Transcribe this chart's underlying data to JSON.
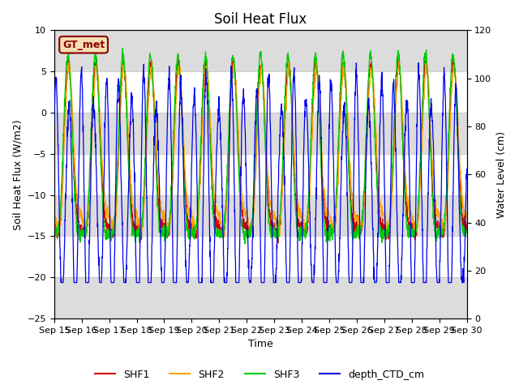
{
  "title": "Soil Heat Flux",
  "ylabel_left": "Soil Heat Flux (W/m2)",
  "ylabel_right": "Water Level (cm)",
  "xlabel": "Time",
  "ylim_left": [
    -25,
    10
  ],
  "ylim_right": [
    0,
    120
  ],
  "annotation_text": "GT_met",
  "annotation_color": "#8B0000",
  "annotation_bg": "#F5DEB3",
  "legend_labels": [
    "SHF1",
    "SHF2",
    "SHF3",
    "depth_CTD_cm"
  ],
  "line_colors": [
    "#CC0000",
    "#FFA500",
    "#00CC00",
    "#0000EE"
  ],
  "background_color": "#ffffff",
  "band_color": "#dcdcdc",
  "title_fontsize": 12,
  "label_fontsize": 9,
  "tick_fontsize": 8,
  "n_points": 2160,
  "x_start": 15,
  "x_end": 30,
  "x_ticks": [
    15,
    16,
    17,
    18,
    19,
    20,
    21,
    22,
    23,
    24,
    25,
    26,
    27,
    28,
    29,
    30
  ],
  "x_tick_labels": [
    "Sep 15",
    "Sep 16",
    "Sep 17",
    "Sep 18",
    "Sep 19",
    "Sep 20",
    "Sep 21",
    "Sep 22",
    "Sep 23",
    "Sep 24",
    "Sep 25",
    "Sep 26",
    "Sep 27",
    "Sep 28",
    "Sep 29",
    "Sep 30"
  ],
  "yticks_left": [
    -25,
    -20,
    -15,
    -10,
    -5,
    0,
    5,
    10
  ],
  "yticks_right": [
    0,
    20,
    40,
    60,
    80,
    100,
    120
  ],
  "band_edges": [
    -25,
    -20,
    -15,
    -10,
    -5,
    0,
    5,
    10
  ]
}
